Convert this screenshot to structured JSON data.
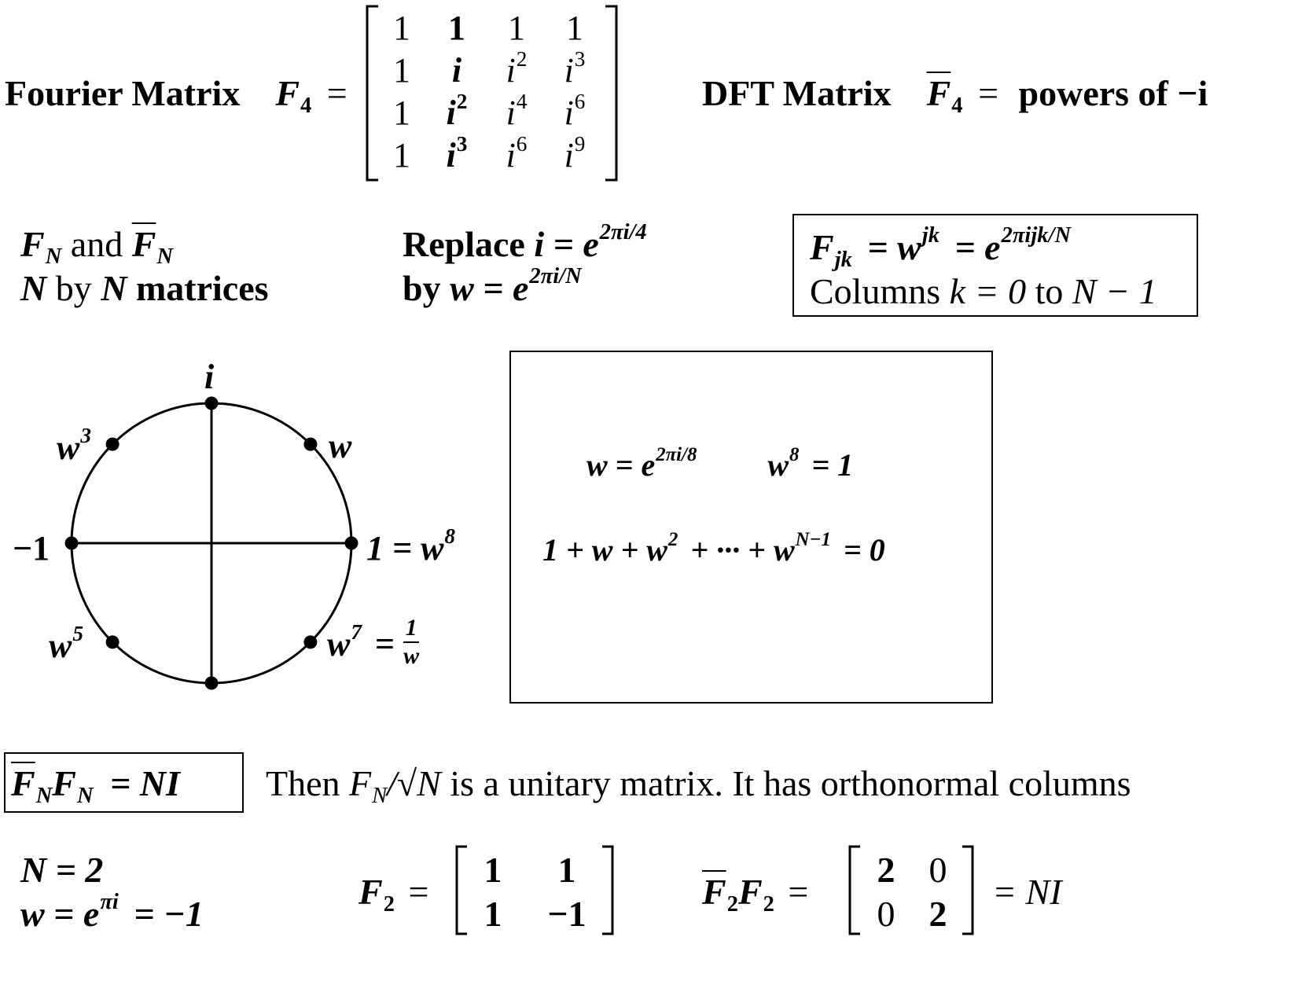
{
  "fourier_matrix": {
    "label": "Fourier Matrix",
    "symbol": "F",
    "subscript": "4",
    "equals": "=",
    "rows": [
      [
        {
          "base": "1",
          "exp": ""
        },
        {
          "base": "1",
          "exp": ""
        },
        {
          "base": "1",
          "exp": ""
        },
        {
          "base": "1",
          "exp": ""
        }
      ],
      [
        {
          "base": "1",
          "exp": ""
        },
        {
          "base": "i",
          "exp": ""
        },
        {
          "base": "i",
          "exp": "2"
        },
        {
          "base": "i",
          "exp": "3"
        }
      ],
      [
        {
          "base": "1",
          "exp": ""
        },
        {
          "base": "i",
          "exp": "2"
        },
        {
          "base": "i",
          "exp": "4"
        },
        {
          "base": "i",
          "exp": "6"
        }
      ],
      [
        {
          "base": "1",
          "exp": ""
        },
        {
          "base": "i",
          "exp": "3"
        },
        {
          "base": "i",
          "exp": "6"
        },
        {
          "base": "i",
          "exp": "9"
        }
      ]
    ]
  },
  "dft_matrix": {
    "label": "DFT Matrix",
    "symbol": "F",
    "subscript": "4",
    "equals": "=",
    "value": "powers of −i"
  },
  "fn_block": {
    "line1_a": "F",
    "line1_sub": "N",
    "line1_and": "and",
    "line1_b": "F",
    "line1_b_sub": "N",
    "line2_n1": "N",
    "line2_by": "by",
    "line2_n2": "N",
    "line2_matrices": "matrices"
  },
  "replace_block": {
    "line1_word": "Replace",
    "line1_math": "i = e",
    "line1_exp": "2πi/4",
    "line2_word": "by",
    "line2_math": "w = e",
    "line2_exp": "2πi/N"
  },
  "fjk_box": {
    "line1_lhs": "F",
    "line1_sub": "jk",
    "line1_mid": "= w",
    "line1_mid_exp": "jk",
    "line1_rhs": "= e",
    "line1_rhs_exp": "2πijk/N",
    "line2_text": "Columns",
    "line2_math": "k = 0",
    "line2_to": "to",
    "line2_end": "N − 1"
  },
  "unit_circle": {
    "labels": {
      "top": "i",
      "w": "w",
      "w3": "w",
      "w3_exp": "3",
      "minus_one": "−1",
      "one_eq": "1 = w",
      "one_eq_exp": "8",
      "w5": "w",
      "w5_exp": "5",
      "w7": "w",
      "w7_exp": "7",
      "w7_eq": "=",
      "frac_num": "1",
      "frac_den": "w"
    }
  },
  "roots_box": {
    "line1_a": "w = e",
    "line1_a_exp": "2πi/8",
    "line1_b": "w",
    "line1_b_exp": "8",
    "line1_b_rest": "= 1",
    "line2_a": "1 + w + w",
    "line2_a_exp": "2",
    "line2_b": "+ ··· + w",
    "line2_b_exp": "N−1",
    "line2_c": "= 0"
  },
  "unitary": {
    "box_f1": "F",
    "box_sub1": "N",
    "box_f2": "F",
    "box_sub2": "N",
    "box_rhs": "= NI",
    "text_then": "Then",
    "text_frac": "F",
    "text_frac_sub": "N",
    "text_sqrt": "/√N",
    "text_rest": "is a unitary matrix. It has orthonormal columns"
  },
  "example_n2": {
    "line1": "N = 2",
    "line2_a": "w = e",
    "line2_exp": "πi",
    "line2_b": "= −1",
    "f2_symbol": "F",
    "f2_sub": "2",
    "f2_eq": "=",
    "f2_rows": [
      [
        "1",
        "1"
      ],
      [
        "1",
        "−1"
      ]
    ],
    "prod_f1": "F",
    "prod_sub1": "2",
    "prod_f2": "F",
    "prod_sub2": "2",
    "prod_eq": "=",
    "prod_rows": [
      [
        "2",
        "0"
      ],
      [
        "0",
        "2"
      ]
    ],
    "prod_rhs": "= NI"
  }
}
